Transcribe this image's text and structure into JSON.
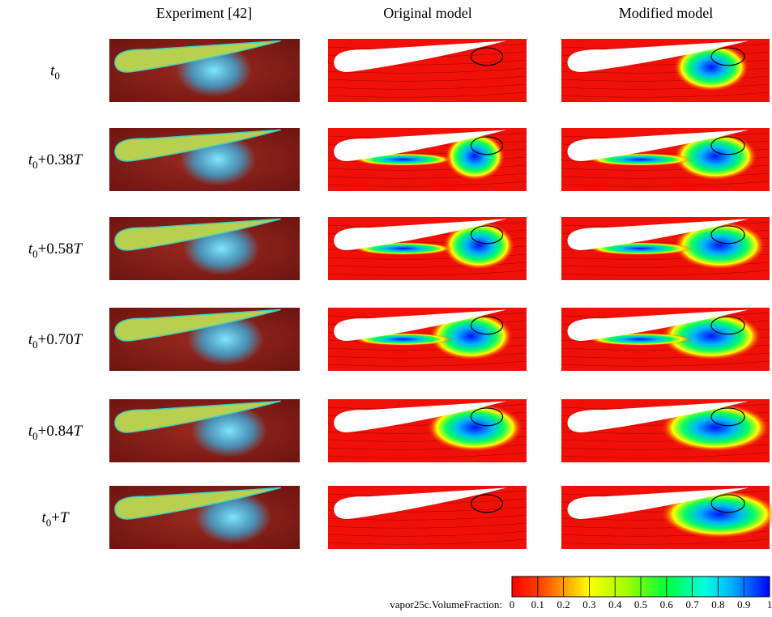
{
  "header": {
    "columns": [
      "Experiment [42]",
      "Original model",
      "Modified model"
    ]
  },
  "rows": [
    {
      "t": "t",
      "sub": "0"
    },
    {
      "t": "t",
      "sub": "0",
      "offset": "+0.38",
      "period": "T"
    },
    {
      "t": "t",
      "sub": "0",
      "offset": "+0.58",
      "period": "T"
    },
    {
      "t": "t",
      "sub": "0",
      "offset": "+0.70",
      "period": "T"
    },
    {
      "t": "t",
      "sub": "0",
      "offset": "+0.84",
      "period": "T"
    },
    {
      "t": "t",
      "sub": "0",
      "offset": "+",
      "period": "T"
    }
  ],
  "colorbar": {
    "label": "vapor25c.VolumeFraction:",
    "ticks": [
      "0",
      "0.1",
      "0.2",
      "0.3",
      "0.4",
      "0.5",
      "0.6",
      "0.7",
      "0.8",
      "0.9",
      "1"
    ]
  }
}
